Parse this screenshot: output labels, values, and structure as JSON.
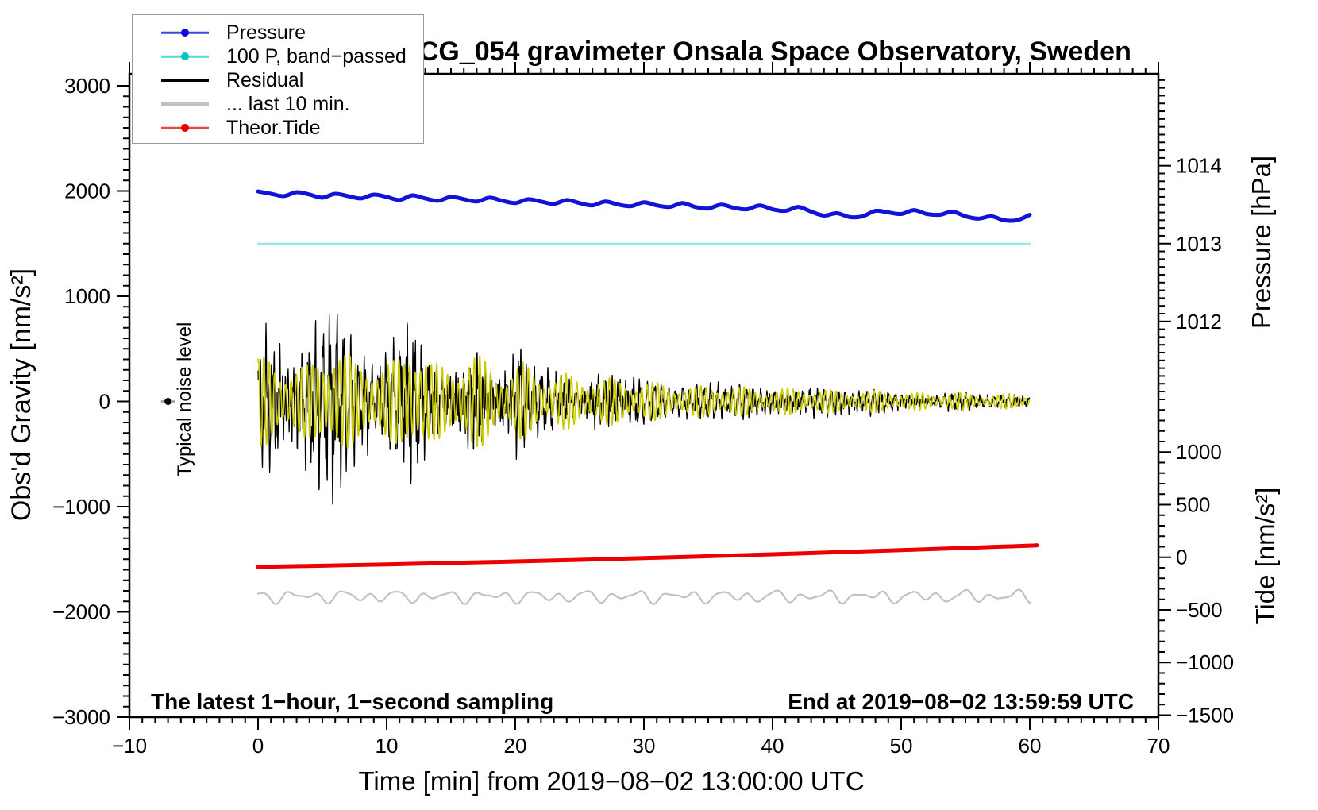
{
  "title": "SCG_054 gravimeter Onsala Space Observatory, Sweden",
  "annotations": {
    "sampling": "The latest 1−hour, 1−second sampling",
    "end_time": "End at 2019−08−02 13:59:59 UTC"
  },
  "legend": {
    "items": [
      {
        "label": "Pressure",
        "line_color": "#4545dd",
        "line_width": 2.5,
        "marker": "dot",
        "marker_color": "#0b0bdf"
      },
      {
        "label": "100 P, band−passed",
        "line_color": "#55dcd6",
        "line_width": 2.5,
        "marker": "dot",
        "marker_color": "#00c4c4"
      },
      {
        "label": "Residual",
        "line_color": "#000000",
        "line_width": 4,
        "marker": "none",
        "marker_color": "#000000"
      },
      {
        "label": "... last 10 min.",
        "line_color": "#c2c2c2",
        "line_width": 4,
        "marker": "none",
        "marker_color": "#c2c2c2"
      },
      {
        "label": "Theor.Tide",
        "line_color": "#ee4444",
        "line_width": 2.5,
        "marker": "dot",
        "marker_color": "#ee0000"
      }
    ]
  },
  "chart_data": {
    "type": "line",
    "title": "SCG_054 gravimeter Onsala Space Observatory, Sweden",
    "x": {
      "label": "Time [min] from 2019−08−02 13:00:00 UTC",
      "min": -10,
      "max": 70,
      "major_tick": 10,
      "minor_tick": 1
    },
    "y_gravity": {
      "label": "Obs'd Gravity [nm/s²]",
      "min": -3000,
      "max": 3000,
      "major_tick": 1000,
      "minor_tick": 100,
      "side": "left"
    },
    "y_pressure": {
      "label": "Pressure [hPa]",
      "ticks": [
        1012,
        1013,
        1014
      ],
      "minor_tick": 0.1,
      "gravity_equiv_per_hpa": 740,
      "gravity_at_1013_hpa": 1500,
      "side": "right-top"
    },
    "y_tide": {
      "label": "Tide [nm/s²]",
      "min": -1500,
      "max": 1000,
      "major_tick": 500,
      "minor_tick": 100,
      "gravity_offset": -1481,
      "side": "right-bottom"
    },
    "noise_marker": {
      "label": "Typical noise level",
      "x_min": -7,
      "gravity": 0,
      "x_error_min": 0.55
    },
    "series": [
      {
        "name": "Pressure",
        "color": "#1212d9",
        "width": 5,
        "axis": "pressure",
        "x_start": 0,
        "x_step": 1,
        "values_hpa": [
          1013.67,
          1013.64,
          1013.61,
          1013.66,
          1013.63,
          1013.59,
          1013.64,
          1013.61,
          1013.58,
          1013.63,
          1013.6,
          1013.56,
          1013.62,
          1013.58,
          1013.55,
          1013.6,
          1013.57,
          1013.54,
          1013.59,
          1013.55,
          1013.52,
          1013.57,
          1013.54,
          1013.51,
          1013.56,
          1013.52,
          1013.49,
          1013.54,
          1013.5,
          1013.48,
          1013.53,
          1013.49,
          1013.47,
          1013.52,
          1013.47,
          1013.45,
          1013.5,
          1013.46,
          1013.44,
          1013.49,
          1013.44,
          1013.42,
          1013.47,
          1013.41,
          1013.36,
          1013.39,
          1013.34,
          1013.35,
          1013.42,
          1013.4,
          1013.38,
          1013.43,
          1013.38,
          1013.37,
          1013.41,
          1013.35,
          1013.32,
          1013.35,
          1013.3,
          1013.3,
          1013.37
        ]
      },
      {
        "name": "100 P, band−passed",
        "color": "#9be7e1",
        "width": 2.4,
        "axis": "gravity",
        "x_range": [
          0,
          60
        ],
        "constant_value": 1500
      },
      {
        "name": "Residual",
        "color": "#000000",
        "width": 1.3,
        "axis": "gravity",
        "x_range": [
          0,
          60
        ],
        "mean": 0,
        "note": "1-second sampled seismic residual; synthesized from amplitude envelope [min, nm/s²]",
        "envelope_keypoints": [
          [
            0,
            680
          ],
          [
            1,
            700
          ],
          [
            2,
            560
          ],
          [
            3,
            520
          ],
          [
            4,
            560
          ],
          [
            5,
            820
          ],
          [
            5.8,
            900
          ],
          [
            6.5,
            760
          ],
          [
            7.5,
            610
          ],
          [
            8.5,
            650
          ],
          [
            9.5,
            560
          ],
          [
            10.5,
            580
          ],
          [
            11.3,
            700
          ],
          [
            11.9,
            1030
          ],
          [
            12.5,
            860
          ],
          [
            13.5,
            560
          ],
          [
            14.5,
            500
          ],
          [
            15.5,
            560
          ],
          [
            16.5,
            690
          ],
          [
            17.5,
            600
          ],
          [
            18.5,
            450
          ],
          [
            19.5,
            420
          ],
          [
            20.5,
            540
          ],
          [
            21.5,
            400
          ],
          [
            22.5,
            340
          ],
          [
            23.5,
            400
          ],
          [
            25,
            300
          ],
          [
            26.5,
            340
          ],
          [
            28,
            280
          ],
          [
            30,
            260
          ],
          [
            32,
            210
          ],
          [
            34,
            190
          ],
          [
            36,
            205
          ],
          [
            38,
            170
          ],
          [
            40,
            150
          ],
          [
            42,
            165
          ],
          [
            44,
            140
          ],
          [
            46,
            120
          ],
          [
            48,
            125
          ],
          [
            50,
            105
          ],
          [
            52,
            95
          ],
          [
            54,
            100
          ],
          [
            56,
            85
          ],
          [
            58,
            80
          ],
          [
            60,
            75
          ]
        ]
      },
      {
        "name": "Residual band−passed (unlabeled yellow overlay)",
        "color": "#cccc00",
        "width": 1.6,
        "axis": "gravity",
        "x_range": [
          0,
          60
        ],
        "envelope_ratio_start": 0.62,
        "envelope_ratio_end": 0.9,
        "period_min": 0.42
      },
      {
        "name": "... last 10 min.",
        "color": "#c2c2c2",
        "width": 2.2,
        "axis": "gravity",
        "x_range": [
          0,
          60
        ],
        "mean": -1853,
        "wave_amplitudes": [
          35,
          25,
          15
        ],
        "wave_periods_min": [
          2.1,
          3.7,
          1.33
        ],
        "wave_phases": [
          0.7,
          2.4,
          4.2
        ]
      },
      {
        "name": "Theor.Tide",
        "color": "#ee0000",
        "width": 5,
        "axis": "tide",
        "points": [
          [
            0,
            -92
          ],
          [
            5,
            -80
          ],
          [
            10,
            -68
          ],
          [
            15,
            -54
          ],
          [
            20,
            -40
          ],
          [
            25,
            -25
          ],
          [
            30,
            -8
          ],
          [
            35,
            10
          ],
          [
            40,
            28
          ],
          [
            45,
            48
          ],
          [
            50,
            68
          ],
          [
            55,
            89
          ],
          [
            60,
            110
          ],
          [
            60.5,
            114
          ]
        ]
      }
    ]
  }
}
